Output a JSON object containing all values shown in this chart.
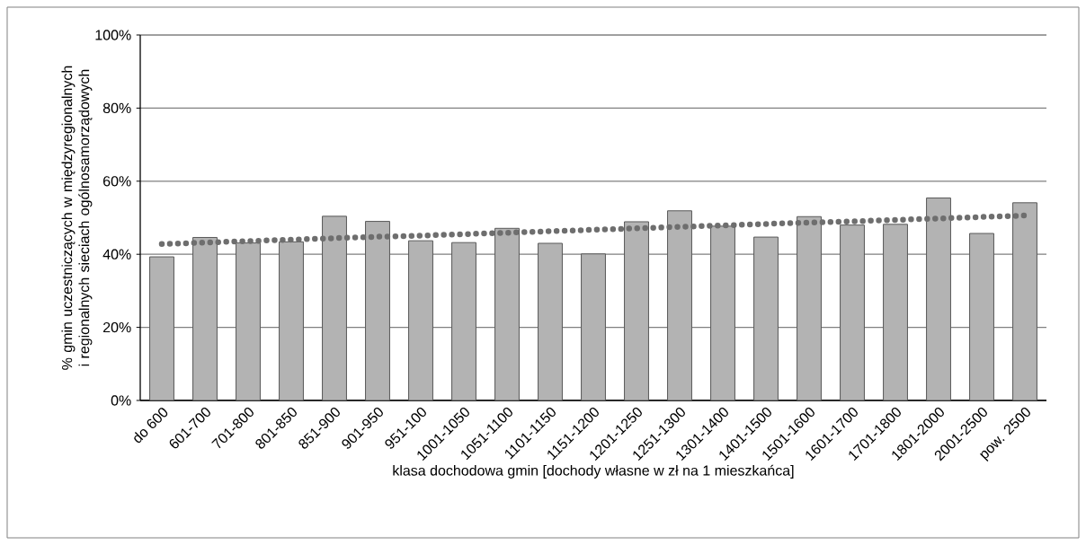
{
  "chart_data": {
    "type": "bar",
    "xlabel": "klasa dochodowa gmin [dochody własne w zł na 1 mieszkańca]",
    "ylabel": "% gmin uczestniczących w międzyregionalnych i regionalnych sieciach ogólnosamorządowych",
    "categories": [
      "do 600",
      "601-700",
      "701-800",
      "801-850",
      "851-900",
      "901-950",
      "951-100",
      "1001-1050",
      "1051-1100",
      "1101-1150",
      "1151-1200",
      "1201-1250",
      "1251-1300",
      "1301-1400",
      "1401-1500",
      "1501-1600",
      "1601-1700",
      "1701-1800",
      "1801-2000",
      "2001-2500",
      "pow. 2500"
    ],
    "series": [
      {
        "color": "#b3b3b3",
        "values": [
          39.3,
          44.6,
          43.1,
          43.4,
          50.4,
          49.0,
          43.7,
          43.2,
          47.1,
          43.0,
          40.1,
          48.9,
          51.9,
          47.7,
          44.7,
          50.3,
          48.0,
          48.2,
          55.4,
          45.7,
          54.1
        ]
      },
      {
        "type": "line",
        "color": "#6e6e6e",
        "line_style": "dotted",
        "values": [
          42.8,
          43.2,
          43.6,
          44.0,
          44.4,
          44.8,
          45.1,
          45.5,
          45.9,
          46.3,
          46.7,
          47.1,
          47.5,
          47.9,
          48.3,
          48.7,
          49.0,
          49.4,
          49.8,
          50.2,
          50.6
        ]
      }
    ],
    "ylim": [
      0,
      100
    ],
    "yticks": [
      {
        "value": 0,
        "label": "0%"
      },
      {
        "value": 20,
        "label": "20%"
      },
      {
        "value": 40,
        "label": "40%"
      },
      {
        "value": 60,
        "label": "60%"
      },
      {
        "value": 80,
        "label": "80%"
      },
      {
        "value": 100,
        "label": "100%"
      }
    ],
    "grid": "y",
    "legend": false
  }
}
